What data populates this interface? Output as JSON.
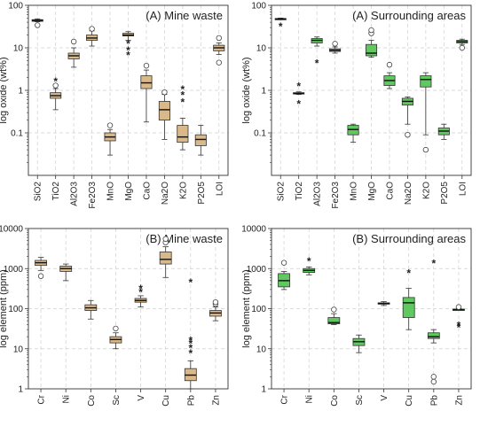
{
  "colors": {
    "mine": "#d9b88a",
    "surround": "#5fc95f",
    "stroke": "#333333",
    "grid": "#cfcfcf"
  },
  "chart_data": [
    {
      "type": "box",
      "title": "(A) Mine waste",
      "ylabel": "log oxide (wt%)",
      "yscale": "log",
      "ylim": [
        0.01,
        100
      ],
      "yticks": [
        "0.1",
        "1",
        "10",
        "100"
      ],
      "grid": true,
      "fill": "mine",
      "categories": [
        "SiO2",
        "TiO2",
        "Al2O3",
        "Fe2O3",
        "MnO",
        "MgO",
        "CaO",
        "Na2O",
        "K2O",
        "P2O5",
        "LOI"
      ],
      "boxes": [
        {
          "min": 41,
          "q1": 42,
          "median": 44,
          "q3": 46,
          "max": 48,
          "outliers": [
            {
              "v": 34,
              "m": "o"
            }
          ]
        },
        {
          "min": 0.35,
          "q1": 0.65,
          "median": 0.75,
          "q3": 0.88,
          "max": 1.1,
          "outliers": [
            {
              "v": 1.3,
              "m": "o"
            },
            {
              "v": 1.7,
              "m": "*"
            }
          ]
        },
        {
          "min": 3.5,
          "q1": 5.5,
          "median": 6.5,
          "q3": 7.5,
          "max": 10,
          "outliers": [
            {
              "v": 14,
              "m": "o"
            }
          ]
        },
        {
          "min": 11,
          "q1": 15,
          "median": 17,
          "q3": 20,
          "max": 25,
          "outliers": [
            {
              "v": 28,
              "m": "o"
            }
          ]
        },
        {
          "min": 0.03,
          "q1": 0.065,
          "median": 0.08,
          "q3": 0.1,
          "max": 0.12,
          "outliers": [
            {
              "v": 0.15,
              "m": "o"
            }
          ]
        },
        {
          "min": 15,
          "q1": 19,
          "median": 20,
          "q3": 22,
          "max": 24,
          "outliers": [
            {
              "v": 13,
              "m": "*"
            },
            {
              "v": 9,
              "m": "*"
            },
            {
              "v": 7,
              "m": "*"
            }
          ]
        },
        {
          "min": 0.18,
          "q1": 1.1,
          "median": 1.5,
          "q3": 2.2,
          "max": 3,
          "outliers": [
            {
              "v": 3.8,
              "m": "o"
            }
          ]
        },
        {
          "min": 0.07,
          "q1": 0.2,
          "median": 0.35,
          "q3": 0.55,
          "max": 0.8,
          "outliers": [
            {
              "v": 0.9,
              "m": "o"
            }
          ]
        },
        {
          "min": 0.04,
          "q1": 0.06,
          "median": 0.08,
          "q3": 0.15,
          "max": 0.22,
          "outliers": [
            {
              "v": 0.55,
              "m": "*"
            },
            {
              "v": 0.8,
              "m": "*"
            },
            {
              "v": 1.1,
              "m": "*"
            }
          ]
        },
        {
          "min": 0.03,
          "q1": 0.05,
          "median": 0.07,
          "q3": 0.09,
          "max": 0.15,
          "outliers": []
        },
        {
          "min": 7,
          "q1": 8.5,
          "median": 10,
          "q3": 11.5,
          "max": 13,
          "outliers": [
            {
              "v": 17,
              "m": "o"
            },
            {
              "v": 4.5,
              "m": "o"
            }
          ]
        }
      ]
    },
    {
      "type": "box",
      "title": "(A) Surrounding areas",
      "ylabel": "log oxide (wt%)",
      "yscale": "log",
      "ylim": [
        0.01,
        100
      ],
      "yticks": [
        "0.1",
        "1",
        "10",
        "100"
      ],
      "grid": true,
      "fill": "surround",
      "categories": [
        "SiO2",
        "TiO2",
        "Al2O3",
        "Fe2O3",
        "MnO",
        "MgO",
        "CaO",
        "Na2O",
        "K2O",
        "P2O5",
        "LOI"
      ],
      "boxes": [
        {
          "min": 46,
          "q1": 47,
          "median": 48,
          "q3": 49,
          "max": 50,
          "outliers": [
            {
              "v": 33,
              "m": "*"
            }
          ]
        },
        {
          "min": 0.8,
          "q1": 0.83,
          "median": 0.85,
          "q3": 0.88,
          "max": 0.92,
          "outliers": [
            {
              "v": 1.3,
              "m": "*"
            },
            {
              "v": 0.5,
              "m": "*"
            }
          ]
        },
        {
          "min": 11,
          "q1": 13,
          "median": 15,
          "q3": 16.5,
          "max": 18,
          "outliers": [
            {
              "v": 4.5,
              "m": "*"
            }
          ]
        },
        {
          "min": 7.5,
          "q1": 8.2,
          "median": 8.8,
          "q3": 9.5,
          "max": 10.5,
          "outliers": [
            {
              "v": 12.5,
              "m": "o"
            }
          ]
        },
        {
          "min": 0.06,
          "q1": 0.09,
          "median": 0.12,
          "q3": 0.15,
          "max": 0.16,
          "outliers": []
        },
        {
          "min": 6,
          "q1": 6.5,
          "median": 7.5,
          "q3": 12,
          "max": 15,
          "outliers": [
            {
              "v": 22,
              "m": "o"
            },
            {
              "v": 26,
              "m": "o"
            }
          ]
        },
        {
          "min": 1.1,
          "q1": 1.3,
          "median": 1.7,
          "q3": 2.2,
          "max": 2.6,
          "outliers": [
            {
              "v": 4,
              "m": "o"
            }
          ]
        },
        {
          "min": 0.16,
          "q1": 0.45,
          "median": 0.55,
          "q3": 0.65,
          "max": 0.7,
          "outliers": [
            {
              "v": 0.09,
              "m": "o"
            }
          ]
        },
        {
          "min": 0.09,
          "q1": 1.2,
          "median": 1.8,
          "q3": 2.2,
          "max": 2.6,
          "outliers": [
            {
              "v": 0.04,
              "m": "o"
            }
          ]
        },
        {
          "min": 0.07,
          "q1": 0.09,
          "median": 0.11,
          "q3": 0.13,
          "max": 0.16,
          "outliers": []
        },
        {
          "min": 12,
          "q1": 13,
          "median": 14,
          "q3": 15,
          "max": 16,
          "outliers": [
            {
              "v": 10,
              "m": "o"
            }
          ]
        }
      ]
    },
    {
      "type": "box",
      "title": "(B) Mine waste",
      "ylabel": "log element (ppm)",
      "yscale": "log",
      "ylim": [
        1,
        10000
      ],
      "yticks": [
        "1",
        "10",
        "100",
        "1000",
        "10000"
      ],
      "grid": true,
      "fill": "mine",
      "categories": [
        "Cr",
        "Ni",
        "Co",
        "Sc",
        "V",
        "Cu",
        "Pb",
        "Zn"
      ],
      "boxes": [
        {
          "min": 900,
          "q1": 1200,
          "median": 1400,
          "q3": 1600,
          "max": 1900,
          "outliers": [
            {
              "v": 650,
              "m": "o"
            }
          ]
        },
        {
          "min": 500,
          "q1": 850,
          "median": 1000,
          "q3": 1150,
          "max": 1300,
          "outliers": []
        },
        {
          "min": 55,
          "q1": 90,
          "median": 105,
          "q3": 125,
          "max": 160,
          "outliers": []
        },
        {
          "min": 10,
          "q1": 14,
          "median": 17,
          "q3": 20,
          "max": 25,
          "outliers": [
            {
              "v": 32,
              "m": "o"
            }
          ]
        },
        {
          "min": 110,
          "q1": 145,
          "median": 160,
          "q3": 180,
          "max": 210,
          "outliers": [
            {
              "v": 270,
              "m": "*"
            },
            {
              "v": 330,
              "m": "*"
            }
          ]
        },
        {
          "min": 600,
          "q1": 1300,
          "median": 1700,
          "q3": 2600,
          "max": 3500,
          "outliers": [
            {
              "v": 4500,
              "m": "o"
            },
            {
              "v": 5500,
              "m": "o"
            }
          ]
        },
        {
          "min": 1,
          "q1": 1.6,
          "median": 2.2,
          "q3": 3.2,
          "max": 5,
          "outliers": [
            {
              "v": 470,
              "m": "*"
            },
            {
              "v": 17,
              "m": "*"
            },
            {
              "v": 14,
              "m": "*"
            },
            {
              "v": 11,
              "m": "*"
            },
            {
              "v": 8,
              "m": "*"
            }
          ]
        },
        {
          "min": 50,
          "q1": 65,
          "median": 78,
          "q3": 90,
          "max": 110,
          "outliers": [
            {
              "v": 130,
              "m": "o"
            },
            {
              "v": 145,
              "m": "o"
            }
          ]
        }
      ]
    },
    {
      "type": "box",
      "title": "(B) Surrounding areas",
      "ylabel": "log element (ppm)",
      "yscale": "log",
      "ylim": [
        1,
        10000
      ],
      "yticks": [
        "1",
        "10",
        "100",
        "1000",
        "10000"
      ],
      "grid": true,
      "fill": "surround",
      "categories": [
        "Cr",
        "Ni",
        "Co",
        "Sc",
        "V",
        "Cu",
        "Pb",
        "Zn"
      ],
      "boxes": [
        {
          "min": 300,
          "q1": 350,
          "median": 500,
          "q3": 750,
          "max": 850,
          "outliers": [
            {
              "v": 1400,
              "m": "o"
            }
          ]
        },
        {
          "min": 700,
          "q1": 800,
          "median": 900,
          "q3": 1000,
          "max": 1100,
          "outliers": [
            {
              "v": 1600,
              "m": "*"
            }
          ]
        },
        {
          "min": 40,
          "q1": 42,
          "median": 45,
          "q3": 60,
          "max": 75,
          "outliers": [
            {
              "v": 95,
              "m": "o"
            }
          ]
        },
        {
          "min": 8,
          "q1": 12,
          "median": 15,
          "q3": 18,
          "max": 22,
          "outliers": []
        },
        {
          "min": 120,
          "q1": 130,
          "median": 135,
          "q3": 140,
          "max": 150,
          "outliers": []
        },
        {
          "min": 30,
          "q1": 60,
          "median": 140,
          "q3": 190,
          "max": 320,
          "outliers": [
            {
              "v": 800,
              "m": "*"
            }
          ]
        },
        {
          "min": 14,
          "q1": 18,
          "median": 20,
          "q3": 25,
          "max": 30,
          "outliers": [
            {
              "v": 1400,
              "m": "*"
            },
            {
              "v": 2,
              "m": "o"
            },
            {
              "v": 1.5,
              "m": "o"
            }
          ]
        },
        {
          "min": 90,
          "q1": 93,
          "median": 95,
          "q3": 97,
          "max": 100,
          "outliers": [
            {
              "v": 110,
              "m": "o"
            },
            {
              "v": 40,
              "m": "*"
            },
            {
              "v": 35,
              "m": "*"
            }
          ]
        }
      ]
    }
  ]
}
